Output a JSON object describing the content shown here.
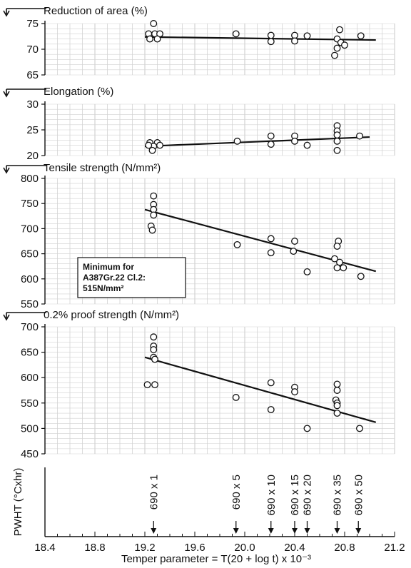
{
  "chart_data": [
    {
      "type": "scatter",
      "title": "Reduction of area (%)",
      "xlabel": "",
      "ylabel": "",
      "xlim": [
        18.4,
        21.2
      ],
      "ylim": [
        65,
        75
      ],
      "yticks": [
        65,
        70,
        75
      ],
      "grid": true,
      "points": [
        {
          "x": 19.28,
          "y": 73.0
        },
        {
          "x": 19.23,
          "y": 73.0
        },
        {
          "x": 19.24,
          "y": 72.0
        },
        {
          "x": 19.32,
          "y": 73.0
        },
        {
          "x": 19.3,
          "y": 72.0
        },
        {
          "x": 19.27,
          "y": 75.0
        },
        {
          "x": 19.93,
          "y": 73.0
        },
        {
          "x": 20.21,
          "y": 72.7
        },
        {
          "x": 20.21,
          "y": 71.5
        },
        {
          "x": 20.4,
          "y": 72.7
        },
        {
          "x": 20.4,
          "y": 71.6
        },
        {
          "x": 20.5,
          "y": 72.6
        },
        {
          "x": 20.76,
          "y": 73.8
        },
        {
          "x": 20.74,
          "y": 72.0
        },
        {
          "x": 20.77,
          "y": 71.3
        },
        {
          "x": 20.74,
          "y": 70.2
        },
        {
          "x": 20.72,
          "y": 68.8
        },
        {
          "x": 20.8,
          "y": 70.8
        },
        {
          "x": 20.93,
          "y": 72.6
        }
      ],
      "trendline": {
        "x": [
          19.2,
          21.05
        ],
        "y": [
          72.4,
          71.8
        ]
      }
    },
    {
      "type": "scatter",
      "title": "Elongation (%)",
      "xlabel": "",
      "ylabel": "",
      "xlim": [
        18.4,
        21.2
      ],
      "ylim": [
        20,
        30
      ],
      "yticks": [
        20,
        25,
        30
      ],
      "grid": true,
      "points": [
        {
          "x": 19.24,
          "y": 22.5
        },
        {
          "x": 19.3,
          "y": 22.5
        },
        {
          "x": 19.27,
          "y": 21.8
        },
        {
          "x": 19.32,
          "y": 22.0
        },
        {
          "x": 19.26,
          "y": 21.0
        },
        {
          "x": 19.23,
          "y": 22.0
        },
        {
          "x": 19.94,
          "y": 22.8
        },
        {
          "x": 20.21,
          "y": 23.8
        },
        {
          "x": 20.21,
          "y": 22.2
        },
        {
          "x": 20.4,
          "y": 23.8
        },
        {
          "x": 20.4,
          "y": 22.8
        },
        {
          "x": 20.5,
          "y": 22.0
        },
        {
          "x": 20.74,
          "y": 25.8
        },
        {
          "x": 20.74,
          "y": 24.8
        },
        {
          "x": 20.74,
          "y": 24.0
        },
        {
          "x": 20.74,
          "y": 22.8
        },
        {
          "x": 20.74,
          "y": 21.0
        },
        {
          "x": 20.92,
          "y": 23.8
        }
      ],
      "trendline": {
        "x": [
          19.2,
          21.0
        ],
        "y": [
          21.8,
          23.6
        ]
      }
    },
    {
      "type": "scatter",
      "title": "Tensile strength (N/mm²)",
      "xlabel": "",
      "ylabel": "",
      "xlim": [
        18.4,
        21.2
      ],
      "ylim": [
        550,
        800
      ],
      "yticks": [
        550,
        600,
        650,
        700,
        750,
        800
      ],
      "grid": true,
      "annotation": [
        "Minimum for",
        "A387Gr.22 Cl.2:",
        "515N/mm²"
      ],
      "points": [
        {
          "x": 19.27,
          "y": 765
        },
        {
          "x": 19.27,
          "y": 748
        },
        {
          "x": 19.27,
          "y": 738
        },
        {
          "x": 19.27,
          "y": 727
        },
        {
          "x": 19.25,
          "y": 705
        },
        {
          "x": 19.26,
          "y": 697
        },
        {
          "x": 19.94,
          "y": 668
        },
        {
          "x": 20.21,
          "y": 680
        },
        {
          "x": 20.21,
          "y": 652
        },
        {
          "x": 20.4,
          "y": 675
        },
        {
          "x": 20.39,
          "y": 655
        },
        {
          "x": 20.5,
          "y": 614
        },
        {
          "x": 20.75,
          "y": 675
        },
        {
          "x": 20.74,
          "y": 665
        },
        {
          "x": 20.72,
          "y": 640
        },
        {
          "x": 20.76,
          "y": 633
        },
        {
          "x": 20.74,
          "y": 622
        },
        {
          "x": 20.79,
          "y": 622
        },
        {
          "x": 20.93,
          "y": 605
        }
      ],
      "trendline": {
        "x": [
          19.2,
          21.05
        ],
        "y": [
          738,
          615
        ]
      }
    },
    {
      "type": "scatter",
      "title": "0.2% proof strength (N/mm²)",
      "xlabel": "",
      "ylabel": "",
      "xlim": [
        18.4,
        21.2
      ],
      "ylim": [
        450,
        700
      ],
      "yticks": [
        450,
        500,
        550,
        600,
        650,
        700
      ],
      "grid": true,
      "points": [
        {
          "x": 19.27,
          "y": 680
        },
        {
          "x": 19.27,
          "y": 662
        },
        {
          "x": 19.27,
          "y": 655
        },
        {
          "x": 19.27,
          "y": 640
        },
        {
          "x": 19.28,
          "y": 636
        },
        {
          "x": 19.22,
          "y": 586
        },
        {
          "x": 19.28,
          "y": 586
        },
        {
          "x": 19.93,
          "y": 561
        },
        {
          "x": 20.21,
          "y": 590
        },
        {
          "x": 20.21,
          "y": 537
        },
        {
          "x": 20.4,
          "y": 581
        },
        {
          "x": 20.4,
          "y": 572
        },
        {
          "x": 20.5,
          "y": 500
        },
        {
          "x": 20.74,
          "y": 587
        },
        {
          "x": 20.74,
          "y": 575
        },
        {
          "x": 20.73,
          "y": 556
        },
        {
          "x": 20.74,
          "y": 550
        },
        {
          "x": 20.74,
          "y": 545
        },
        {
          "x": 20.74,
          "y": 530
        },
        {
          "x": 20.92,
          "y": 500
        }
      ],
      "trendline": {
        "x": [
          19.2,
          21.05
        ],
        "y": [
          640,
          512
        ]
      }
    },
    {
      "type": "scatter",
      "title": "",
      "ylabel": "PWHT (°Cxhr)",
      "xlabel": "Temper parameter = T(20 + log t) x 10⁻³",
      "xlim": [
        18.4,
        21.2
      ],
      "xticks": [
        18.4,
        18.8,
        19.2,
        19.6,
        20.0,
        20.4,
        20.8,
        21.2
      ],
      "markers": [
        {
          "x": 19.27,
          "label": "690 x 1"
        },
        {
          "x": 19.93,
          "label": "690 x 5"
        },
        {
          "x": 20.21,
          "label": "690 x 10"
        },
        {
          "x": 20.4,
          "label": "690 x 15"
        },
        {
          "x": 20.5,
          "label": "690 x 20"
        },
        {
          "x": 20.74,
          "label": "690 x 35"
        },
        {
          "x": 20.91,
          "label": "690 x 50"
        }
      ]
    }
  ]
}
